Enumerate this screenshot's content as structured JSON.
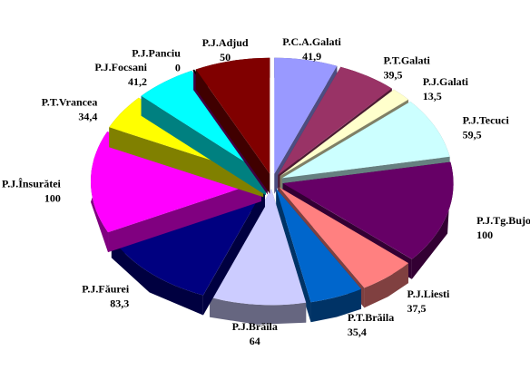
{
  "chart_data": {
    "type": "pie",
    "categories": [
      "P.C.A.Galati",
      "P.T.Galati",
      "P.J.Galati",
      "P.J.Tecuci",
      "P.J.Tg.Bujor",
      "P.J.Liesti",
      "P.T.Brăila",
      "P.J.Brăila",
      "P.J.Făurei",
      "P.J.Însurătei",
      "P.T.Vrancea",
      "P.J.Focsani",
      "P.J.Panciu",
      "P.J.Adjud"
    ],
    "values": [
      41.9,
      39.5,
      13.5,
      59.5,
      100,
      37.5,
      35.4,
      64,
      83.3,
      100,
      34.4,
      41.2,
      0,
      50
    ],
    "value_labels": [
      "41,9",
      "39,5",
      "13,5",
      "59,5",
      "100",
      "37,5",
      "35,4",
      "64",
      "83,3",
      "100",
      "34,4",
      "41,2",
      "0",
      "50"
    ],
    "colors": [
      "#9999ff",
      "#993366",
      "#ffffcc",
      "#ccffff",
      "#660066",
      "#ff8080",
      "#0066cc",
      "#ccccff",
      "#000080",
      "#ff00ff",
      "#ffff00",
      "#00ffff",
      "#800080",
      "#800000"
    ]
  }
}
